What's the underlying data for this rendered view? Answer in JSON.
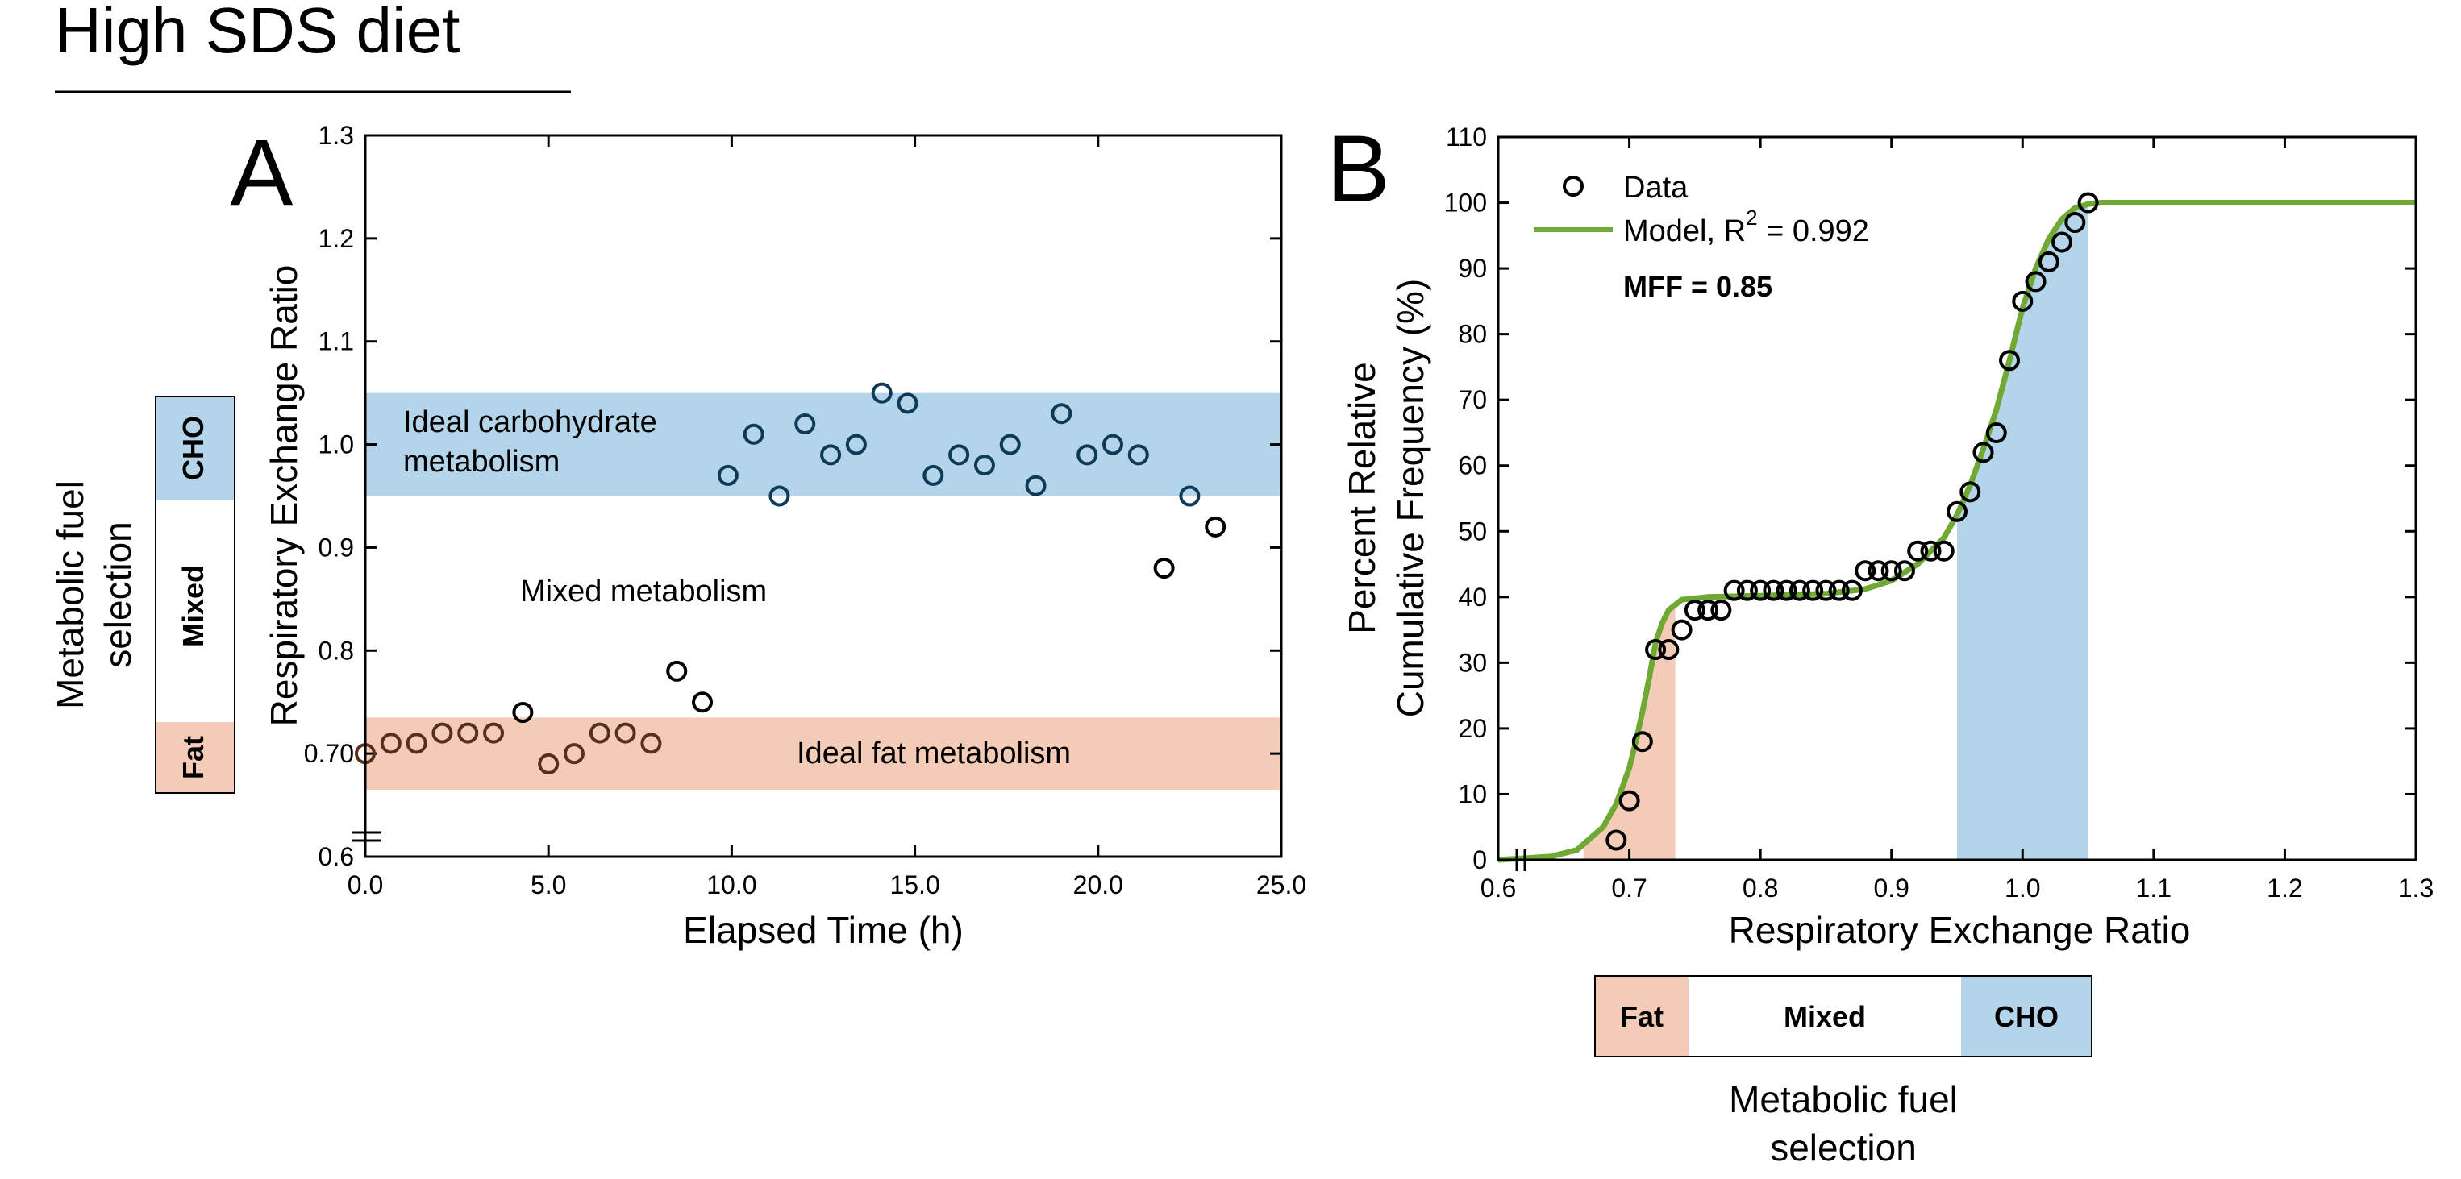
{
  "page_title": "High SDS diet",
  "colors": {
    "fat": "#f4cbb7",
    "cho": "#b4d4ea",
    "fat_marker": "#5a2e1c",
    "cho_marker": "#0d3b57",
    "mixed_marker": "#000000",
    "model_line": "#6fa832"
  },
  "fuel_selection": {
    "label_line1": "Metabolic fuel",
    "label_line2": "selection",
    "fat": "Fat",
    "mixed": "Mixed",
    "cho": "CHO"
  },
  "chart_data": [
    {
      "panel": "A",
      "type": "scatter",
      "xlabel": "Elapsed Time (h)",
      "ylabel": "Respiratory Exchange Ratio",
      "xlim": [
        0,
        25
      ],
      "ylim": [
        0.6,
        1.3
      ],
      "xticks": [
        0,
        5,
        10,
        15,
        20,
        25
      ],
      "xtick_labels": [
        "0.0",
        "5.0",
        "10.0",
        "15.0",
        "20.0",
        "25.0"
      ],
      "yticks": [
        0.6,
        0.7,
        0.8,
        0.9,
        1.0,
        1.1,
        1.2,
        1.3
      ],
      "ytick_labels": [
        "0.6",
        "0.70",
        "0.8",
        "0.9",
        "1.0",
        "1.1",
        "1.2",
        "1.3"
      ],
      "bands": [
        {
          "name": "cho",
          "ymin": 0.95,
          "ymax": 1.05,
          "label_line1": "Ideal carbohydrate",
          "label_line2": "metabolism"
        },
        {
          "name": "fat",
          "ymin": 0.665,
          "ymax": 0.735,
          "label": "Ideal fat metabolism"
        }
      ],
      "annotations": {
        "mixed": "Mixed metabolism"
      },
      "points": [
        {
          "x": 0.0,
          "y": 0.7,
          "zone": "fat"
        },
        {
          "x": 0.7,
          "y": 0.71,
          "zone": "fat"
        },
        {
          "x": 1.4,
          "y": 0.71,
          "zone": "fat"
        },
        {
          "x": 2.1,
          "y": 0.72,
          "zone": "fat"
        },
        {
          "x": 2.8,
          "y": 0.72,
          "zone": "fat"
        },
        {
          "x": 3.5,
          "y": 0.72,
          "zone": "fat"
        },
        {
          "x": 4.3,
          "y": 0.74,
          "zone": "mixed"
        },
        {
          "x": 5.0,
          "y": 0.69,
          "zone": "fat"
        },
        {
          "x": 5.7,
          "y": 0.7,
          "zone": "fat"
        },
        {
          "x": 6.4,
          "y": 0.72,
          "zone": "fat"
        },
        {
          "x": 7.1,
          "y": 0.72,
          "zone": "fat"
        },
        {
          "x": 7.8,
          "y": 0.71,
          "zone": "fat"
        },
        {
          "x": 8.5,
          "y": 0.78,
          "zone": "mixed"
        },
        {
          "x": 9.2,
          "y": 0.75,
          "zone": "mixed"
        },
        {
          "x": 9.9,
          "y": 0.97,
          "zone": "cho"
        },
        {
          "x": 10.6,
          "y": 1.01,
          "zone": "cho"
        },
        {
          "x": 11.3,
          "y": 0.95,
          "zone": "cho"
        },
        {
          "x": 12.0,
          "y": 1.02,
          "zone": "cho"
        },
        {
          "x": 12.7,
          "y": 0.99,
          "zone": "cho"
        },
        {
          "x": 13.4,
          "y": 1.0,
          "zone": "cho"
        },
        {
          "x": 14.1,
          "y": 1.05,
          "zone": "cho"
        },
        {
          "x": 14.8,
          "y": 1.04,
          "zone": "cho"
        },
        {
          "x": 15.5,
          "y": 0.97,
          "zone": "cho"
        },
        {
          "x": 16.2,
          "y": 0.99,
          "zone": "cho"
        },
        {
          "x": 16.9,
          "y": 0.98,
          "zone": "cho"
        },
        {
          "x": 17.6,
          "y": 1.0,
          "zone": "cho"
        },
        {
          "x": 18.3,
          "y": 0.96,
          "zone": "cho"
        },
        {
          "x": 19.0,
          "y": 1.03,
          "zone": "cho"
        },
        {
          "x": 19.7,
          "y": 0.99,
          "zone": "cho"
        },
        {
          "x": 20.4,
          "y": 1.0,
          "zone": "cho"
        },
        {
          "x": 21.1,
          "y": 0.99,
          "zone": "cho"
        },
        {
          "x": 21.8,
          "y": 0.88,
          "zone": "mixed"
        },
        {
          "x": 22.5,
          "y": 0.95,
          "zone": "cho"
        },
        {
          "x": 23.2,
          "y": 0.92,
          "zone": "mixed"
        }
      ]
    },
    {
      "panel": "B",
      "type": "scatter",
      "xlabel": "Respiratory Exchange Ratio",
      "ylabel_line1": "Percent Relative",
      "ylabel_line2": "Cumulative Frequency (%)",
      "xlim": [
        0.6,
        1.3
      ],
      "ylim": [
        0,
        110
      ],
      "xticks": [
        0.6,
        0.7,
        0.8,
        0.9,
        1.0,
        1.1,
        1.2,
        1.3
      ],
      "xtick_labels": [
        "0.6",
        "0.7",
        "0.8",
        "0.9",
        "1.0",
        "1.1",
        "1.2",
        "1.3"
      ],
      "yticks": [
        0,
        10,
        20,
        30,
        40,
        50,
        60,
        70,
        80,
        90,
        100,
        110
      ],
      "ytick_labels": [
        "0",
        "10",
        "20",
        "30",
        "40",
        "50",
        "60",
        "70",
        "80",
        "90",
        "100",
        "110"
      ],
      "fills": [
        {
          "name": "fat",
          "xmin": 0.665,
          "xmax": 0.735
        },
        {
          "name": "cho",
          "xmin": 0.95,
          "xmax": 1.05
        }
      ],
      "legend": {
        "data": "Data",
        "model": "Model, R",
        "model_sup": "2",
        "model_value": " = 0.992",
        "placement": "top-left"
      },
      "mff": "MFF = 0.85",
      "points": [
        {
          "x": 0.69,
          "y": 3
        },
        {
          "x": 0.7,
          "y": 9
        },
        {
          "x": 0.71,
          "y": 18
        },
        {
          "x": 0.72,
          "y": 32
        },
        {
          "x": 0.73,
          "y": 32
        },
        {
          "x": 0.74,
          "y": 35
        },
        {
          "x": 0.75,
          "y": 38
        },
        {
          "x": 0.76,
          "y": 38
        },
        {
          "x": 0.77,
          "y": 38
        },
        {
          "x": 0.78,
          "y": 41
        },
        {
          "x": 0.79,
          "y": 41
        },
        {
          "x": 0.8,
          "y": 41
        },
        {
          "x": 0.81,
          "y": 41
        },
        {
          "x": 0.82,
          "y": 41
        },
        {
          "x": 0.83,
          "y": 41
        },
        {
          "x": 0.84,
          "y": 41
        },
        {
          "x": 0.85,
          "y": 41
        },
        {
          "x": 0.86,
          "y": 41
        },
        {
          "x": 0.87,
          "y": 41
        },
        {
          "x": 0.88,
          "y": 44
        },
        {
          "x": 0.89,
          "y": 44
        },
        {
          "x": 0.9,
          "y": 44
        },
        {
          "x": 0.91,
          "y": 44
        },
        {
          "x": 0.92,
          "y": 47
        },
        {
          "x": 0.93,
          "y": 47
        },
        {
          "x": 0.94,
          "y": 47
        },
        {
          "x": 0.95,
          "y": 53
        },
        {
          "x": 0.96,
          "y": 56
        },
        {
          "x": 0.97,
          "y": 62
        },
        {
          "x": 0.98,
          "y": 65
        },
        {
          "x": 0.99,
          "y": 76
        },
        {
          "x": 1.0,
          "y": 85
        },
        {
          "x": 1.01,
          "y": 88
        },
        {
          "x": 1.02,
          "y": 91
        },
        {
          "x": 1.03,
          "y": 94
        },
        {
          "x": 1.04,
          "y": 97
        },
        {
          "x": 1.05,
          "y": 100
        }
      ],
      "model_curve": {
        "x": [
          0.6,
          0.64,
          0.66,
          0.68,
          0.69,
          0.7,
          0.705,
          0.71,
          0.715,
          0.72,
          0.725,
          0.73,
          0.74,
          0.76,
          0.8,
          0.85,
          0.88,
          0.9,
          0.92,
          0.94,
          0.95,
          0.96,
          0.97,
          0.98,
          0.99,
          1.0,
          1.01,
          1.02,
          1.03,
          1.04,
          1.05,
          1.06,
          1.08,
          1.1,
          1.2,
          1.3
        ],
        "y": [
          0,
          0.5,
          1.5,
          5,
          8.5,
          14,
          18,
          22.5,
          27.5,
          33,
          36,
          38,
          39.6,
          40,
          40.2,
          40.5,
          41.2,
          42.5,
          45,
          49,
          52.5,
          57,
          62.5,
          68.5,
          76,
          84,
          90,
          94.5,
          97.5,
          99.2,
          99.8,
          100,
          100,
          100,
          100,
          100
        ]
      }
    }
  ]
}
